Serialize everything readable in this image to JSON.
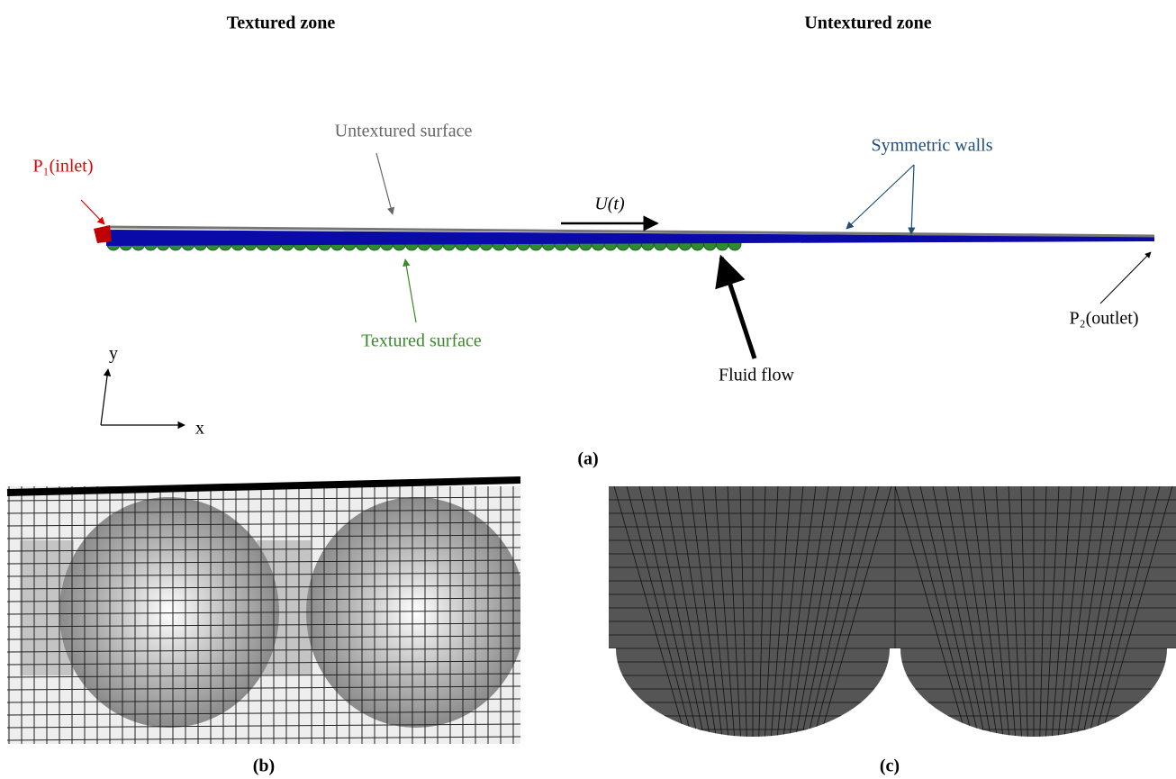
{
  "header": {
    "textured_zone": "Textured zone",
    "untextured_zone": "Untextured zone"
  },
  "labels": {
    "untextured_surface": "Untextured surface",
    "symmetric_walls": "Symmetric walls",
    "inlet": "P₁(inlet)",
    "velocity": "U(t)",
    "textured_surface": "Textured surface",
    "fluid_flow": "Fluid flow",
    "outlet": "P₂(outlet)",
    "axis_y": "y",
    "axis_x": "x"
  },
  "panels": [
    "(a)",
    "(b)",
    "(c)"
  ]
}
